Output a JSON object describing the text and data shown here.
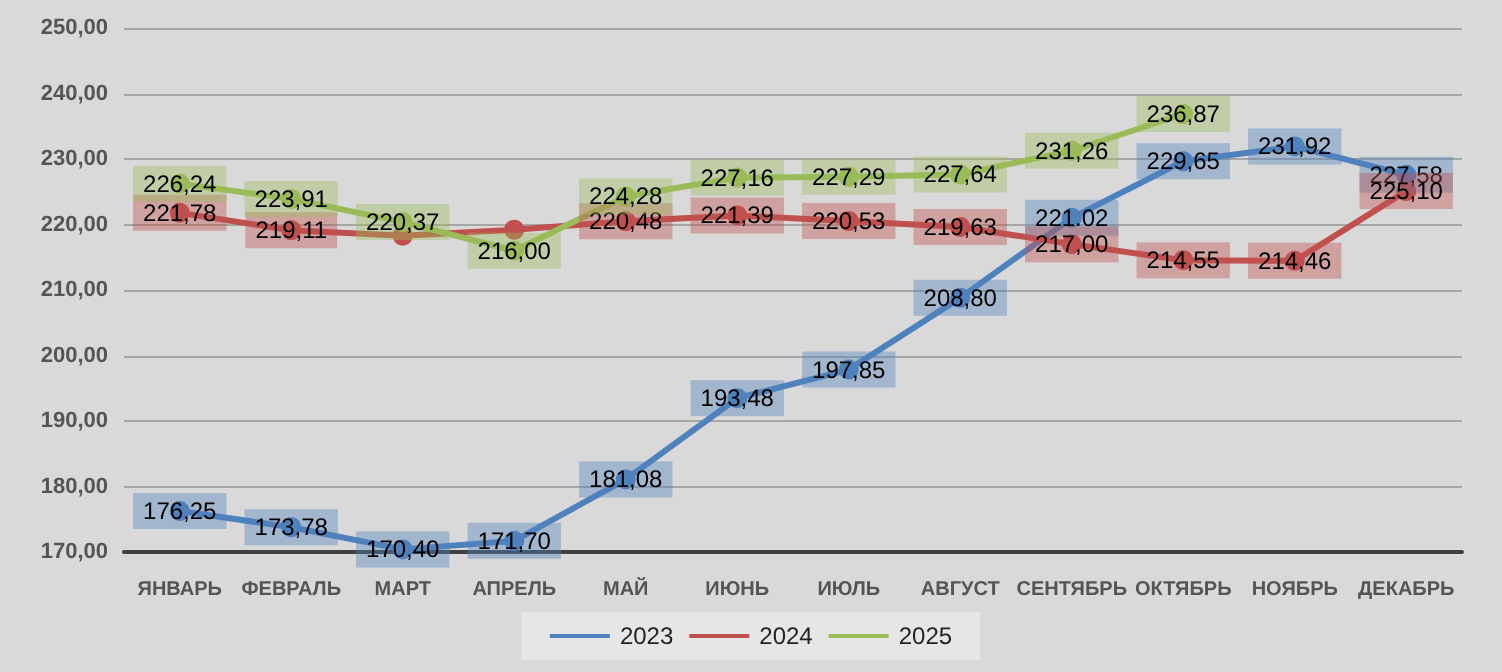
{
  "chart_data": {
    "type": "line",
    "categories": [
      "ЯНВАРЬ",
      "ФЕВРАЛЬ",
      "МАРТ",
      "АПРЕЛЬ",
      "МАЙ",
      "ИЮНЬ",
      "ИЮЛЬ",
      "АВГУСТ",
      "СЕНТЯБРЬ",
      "ОКТЯБРЬ",
      "НОЯБРЬ",
      "ДЕКАБРЬ"
    ],
    "series": [
      {
        "name": "2023",
        "color": "#4f81bd",
        "values": [
          176.25,
          173.78,
          170.4,
          171.7,
          181.08,
          193.48,
          197.85,
          208.8,
          221.02,
          229.65,
          231.92,
          227.58
        ],
        "value_labels": [
          "176,25",
          "173,78",
          "170,40",
          "171,70",
          "181,08",
          "193,48",
          "197,85",
          "208,80",
          "221.02",
          "229,65",
          "231,92",
          "227,58"
        ]
      },
      {
        "name": "2024",
        "color": "#c0504d",
        "values": [
          221.78,
          219.11,
          218.3,
          219.2,
          220.48,
          221.39,
          220.53,
          219.63,
          217.0,
          214.55,
          214.46,
          225.1
        ],
        "value_labels": [
          "221,78",
          "219,11",
          null,
          null,
          "220,48",
          "221,39",
          "220,53",
          "219,63",
          "217,00",
          "214,55",
          "214,46",
          "225,10"
        ]
      },
      {
        "name": "2025",
        "color": "#9bbb59",
        "values": [
          226.24,
          223.91,
          220.37,
          216.0,
          224.28,
          227.16,
          227.29,
          227.64,
          231.26,
          236.87,
          null,
          null
        ],
        "value_labels": [
          "226,24",
          "223,91",
          "220,37",
          "216,00",
          "224,28",
          "227,16",
          "227,29",
          "227,64",
          "231,26",
          "236,87",
          null,
          null
        ]
      }
    ],
    "ylim": [
      170,
      250
    ],
    "yticks": [
      {
        "value": 170,
        "label": "170,00"
      },
      {
        "value": 180,
        "label": "180,00"
      },
      {
        "value": 190,
        "label": "190,00"
      },
      {
        "value": 200,
        "label": "200,00"
      },
      {
        "value": 210,
        "label": "210,00"
      },
      {
        "value": 220,
        "label": "220,00"
      },
      {
        "value": 230,
        "label": "230,00"
      },
      {
        "value": 240,
        "label": "240,00"
      },
      {
        "value": 250,
        "label": "250,00"
      }
    ],
    "grid": "y",
    "legend": "bottom",
    "marker": "circle",
    "line_style": "solid"
  }
}
